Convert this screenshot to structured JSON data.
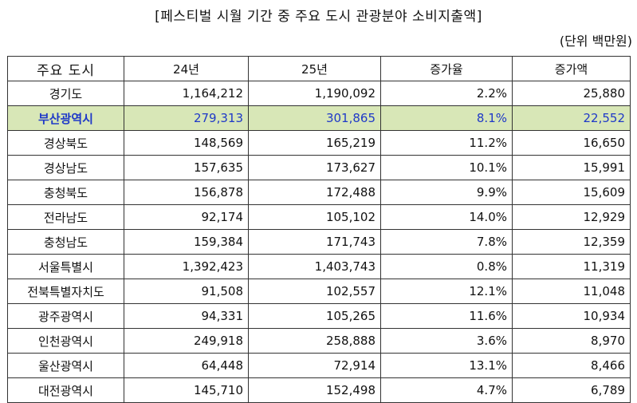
{
  "title": "[페스티벌 시월 기간 중 주요 도시 관광분야 소비지출액]",
  "unit": "(단위 백만원)",
  "table": {
    "headers": [
      "주요 도시",
      "24년",
      "25년",
      "증가율",
      "증가액"
    ],
    "rows": [
      {
        "city": "경기도",
        "y24": "1,164,212",
        "y25": "1,190,092",
        "rate": "2.2%",
        "amount": "25,880",
        "highlight": false
      },
      {
        "city": "부산광역시",
        "y24": "279,313",
        "y25": "301,865",
        "rate": "8.1%",
        "amount": "22,552",
        "highlight": true
      },
      {
        "city": "경상북도",
        "y24": "148,569",
        "y25": "165,219",
        "rate": "11.2%",
        "amount": "16,650",
        "highlight": false
      },
      {
        "city": "경상남도",
        "y24": "157,635",
        "y25": "173,627",
        "rate": "10.1%",
        "amount": "15,991",
        "highlight": false
      },
      {
        "city": "충청북도",
        "y24": "156,878",
        "y25": "172,488",
        "rate": "9.9%",
        "amount": "15,609",
        "highlight": false
      },
      {
        "city": "전라남도",
        "y24": "92,174",
        "y25": "105,102",
        "rate": "14.0%",
        "amount": "12,929",
        "highlight": false
      },
      {
        "city": "충청남도",
        "y24": "159,384",
        "y25": "171,743",
        "rate": "7.8%",
        "amount": "12,359",
        "highlight": false
      },
      {
        "city": "서울특별시",
        "y24": "1,392,423",
        "y25": "1,403,743",
        "rate": "0.8%",
        "amount": "11,319",
        "highlight": false
      },
      {
        "city": "전북특별자치도",
        "y24": "91,508",
        "y25": "102,557",
        "rate": "12.1%",
        "amount": "11,048",
        "highlight": false
      },
      {
        "city": "광주광역시",
        "y24": "94,331",
        "y25": "105,265",
        "rate": "11.6%",
        "amount": "10,934",
        "highlight": false
      },
      {
        "city": "인천광역시",
        "y24": "249,918",
        "y25": "258,888",
        "rate": "3.6%",
        "amount": "8,970",
        "highlight": false
      },
      {
        "city": "울산광역시",
        "y24": "64,448",
        "y25": "72,914",
        "rate": "13.1%",
        "amount": "8,466",
        "highlight": false
      },
      {
        "city": "대전광역시",
        "y24": "145,710",
        "y25": "152,498",
        "rate": "4.7%",
        "amount": "6,789",
        "highlight": false
      }
    ]
  },
  "colors": {
    "highlight_bg": "#d8e7b7",
    "highlight_text": "#1f39c8",
    "border": "#333333"
  }
}
